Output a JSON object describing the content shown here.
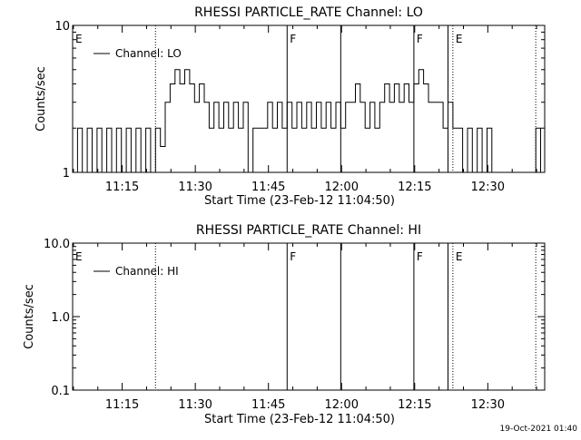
{
  "footer": {
    "timestamp": "19-Oct-2021 01:40"
  },
  "chart_data": [
    {
      "type": "line",
      "title": "RHESSI PARTICLE_RATE Channel: LO",
      "xlabel": "Start Time (23-Feb-12 11:04:50)",
      "ylabel": "Counts/sec",
      "yscale": "log",
      "ylim": [
        1,
        10
      ],
      "xlim": [
        "11:04:50",
        "12:41:40"
      ],
      "yticks": [
        {
          "value": 1,
          "label": "1"
        },
        {
          "value": 10,
          "label": "10"
        }
      ],
      "xticks": [
        {
          "value": "11:15",
          "label": "11:15"
        },
        {
          "value": "11:30",
          "label": "11:30"
        },
        {
          "value": "11:45",
          "label": "11:45"
        },
        {
          "value": "12:00",
          "label": "12:00"
        },
        {
          "value": "12:15",
          "label": "12:15"
        },
        {
          "value": "12:30",
          "label": "12:30"
        }
      ],
      "legend": {
        "placement": "top-left",
        "entries": [
          "Channel: LO"
        ]
      },
      "markers": [
        {
          "time": "11:04:50",
          "label": "E",
          "style": "none"
        },
        {
          "time": "11:21:50",
          "label": "",
          "style": "dotted"
        },
        {
          "time": "11:48:50",
          "label": "F",
          "style": "solid"
        },
        {
          "time": "11:59:50",
          "label": "",
          "style": "solid"
        },
        {
          "time": "12:14:50",
          "label": "F",
          "style": "solid"
        },
        {
          "time": "12:21:50",
          "label": "",
          "style": "solid"
        },
        {
          "time": "12:22:50",
          "label": "E",
          "style": "dotted"
        },
        {
          "time": "12:39:50",
          "label": "",
          "style": "dotted"
        }
      ],
      "series": [
        {
          "x": [
            "11:04:50",
            "11:05:50",
            "11:06:50",
            "11:07:50",
            "11:08:50",
            "11:09:50",
            "11:10:50",
            "11:11:50",
            "11:12:50",
            "11:13:50",
            "11:14:50",
            "11:15:50",
            "11:16:50",
            "11:17:50",
            "11:18:50",
            "11:19:50",
            "11:20:50",
            "11:21:50",
            "11:22:50",
            "11:23:50",
            "11:24:50",
            "11:25:50",
            "11:26:50",
            "11:27:50",
            "11:28:50",
            "11:29:50",
            "11:30:50",
            "11:31:50",
            "11:32:50",
            "11:33:50",
            "11:34:50",
            "11:35:50",
            "11:36:50",
            "11:37:50",
            "11:38:50",
            "11:39:50",
            "11:40:50",
            "11:41:50",
            "11:42:50",
            "11:43:50",
            "11:44:50",
            "11:45:50",
            "11:46:50",
            "11:47:50",
            "11:48:50",
            "11:49:50",
            "11:50:50",
            "11:51:50",
            "11:52:50",
            "11:53:50",
            "11:54:50",
            "11:55:50",
            "11:56:50",
            "11:57:50",
            "11:58:50",
            "11:59:50",
            "12:00:50",
            "12:01:50",
            "12:02:50",
            "12:03:50",
            "12:04:50",
            "12:05:50",
            "12:06:50",
            "12:07:50",
            "12:08:50",
            "12:09:50",
            "12:10:50",
            "12:11:50",
            "12:12:50",
            "12:13:50",
            "12:14:50",
            "12:15:50",
            "12:16:50",
            "12:17:50",
            "12:18:50",
            "12:19:50",
            "12:20:50",
            "12:21:50",
            "12:22:50",
            "12:23:50",
            "12:24:50",
            "12:25:50",
            "12:26:50",
            "12:27:50",
            "12:28:50",
            "12:29:50",
            "12:30:50",
            "12:31:50",
            "12:32:50",
            "12:33:50",
            "12:34:50",
            "12:35:50",
            "12:36:50",
            "12:37:50",
            "12:38:50",
            "12:39:50",
            "12:40:50",
            "12:41:40"
          ],
          "y": [
            1,
            2,
            1,
            2,
            1,
            2,
            1,
            2,
            1,
            2,
            1,
            2,
            1,
            2,
            1,
            2,
            1,
            2,
            1.5,
            3,
            4,
            5,
            4,
            5,
            4,
            3,
            4,
            3,
            2,
            3,
            2,
            3,
            2,
            3,
            2,
            3,
            1,
            2,
            2,
            2,
            3,
            2,
            3,
            2,
            3,
            2,
            3,
            2,
            3,
            2,
            3,
            2,
            3,
            2,
            3,
            2,
            3,
            3,
            4,
            3,
            2,
            3,
            2,
            3,
            4,
            3,
            4,
            3,
            4,
            3,
            4,
            5,
            4,
            3,
            3,
            3,
            2,
            3,
            2,
            2,
            1,
            2,
            1,
            2,
            1,
            2,
            1,
            1,
            1,
            1,
            1,
            1,
            1,
            1,
            1,
            2,
            1,
            1
          ]
        }
      ]
    },
    {
      "type": "line",
      "title": "RHESSI PARTICLE_RATE Channel: HI",
      "xlabel": "Start Time (23-Feb-12 11:04:50)",
      "ylabel": "Counts/sec",
      "yscale": "log",
      "ylim": [
        0.1,
        10
      ],
      "xlim": [
        "11:04:50",
        "12:41:40"
      ],
      "yticks": [
        {
          "value": 0.1,
          "label": "0.1"
        },
        {
          "value": 1,
          "label": "1.0"
        },
        {
          "value": 10,
          "label": "10.0"
        }
      ],
      "xticks": [
        {
          "value": "11:15",
          "label": "11:15"
        },
        {
          "value": "11:30",
          "label": "11:30"
        },
        {
          "value": "11:45",
          "label": "11:45"
        },
        {
          "value": "12:00",
          "label": "12:00"
        },
        {
          "value": "12:15",
          "label": "12:15"
        },
        {
          "value": "12:30",
          "label": "12:30"
        }
      ],
      "legend": {
        "placement": "top-left",
        "entries": [
          "Channel: HI"
        ]
      },
      "markers": [
        {
          "time": "11:04:50",
          "label": "E",
          "style": "none"
        },
        {
          "time": "11:21:50",
          "label": "",
          "style": "dotted"
        },
        {
          "time": "11:48:50",
          "label": "F",
          "style": "solid"
        },
        {
          "time": "11:59:50",
          "label": "",
          "style": "solid"
        },
        {
          "time": "12:14:50",
          "label": "F",
          "style": "solid"
        },
        {
          "time": "12:21:50",
          "label": "",
          "style": "solid"
        },
        {
          "time": "12:22:50",
          "label": "E",
          "style": "dotted"
        },
        {
          "time": "12:39:50",
          "label": "",
          "style": "dotted"
        }
      ],
      "series": []
    }
  ]
}
